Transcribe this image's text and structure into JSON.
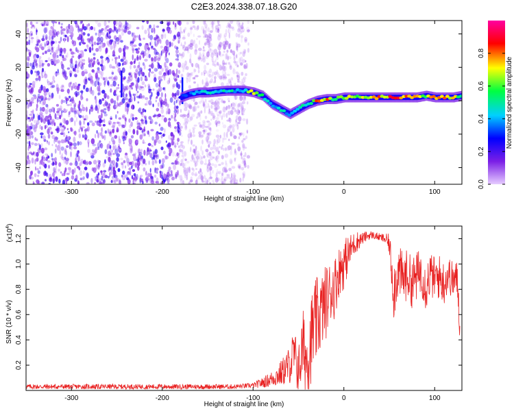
{
  "page": {
    "title": "C2E3.2024.338.07.18.G20"
  },
  "chart_data": [
    {
      "type": "heatmap",
      "title": "C2E3.2024.338.07.18.G20",
      "xlabel": "Height of straight line (km)",
      "ylabel": "Frequency (Hz)",
      "xlim": [
        -350,
        130
      ],
      "ylim": [
        -50,
        48
      ],
      "xticks": [
        -300,
        -200,
        -100,
        0,
        100
      ],
      "yticks": [
        -40,
        -20,
        0,
        20,
        40
      ],
      "colorbar": {
        "label": "Normalized spectral amplitude",
        "range": [
          0,
          1
        ],
        "ticks": [
          0.0,
          0.2,
          0.4,
          0.6,
          0.8
        ],
        "tick_labels": [
          "0.0",
          "0.2",
          "0.4",
          "0.6",
          "0.8"
        ],
        "colors": [
          "#e6ccff",
          "#7b1fe6",
          "#0000ff",
          "#00d0ff",
          "#00ff40",
          "#ffff00",
          "#ff0000",
          "#ff00a0"
        ]
      },
      "signal_track": {
        "x": [
          -180,
          -170,
          -160,
          -150,
          -140,
          -130,
          -120,
          -110,
          -100,
          -90,
          -80,
          -70,
          -60,
          -50,
          -40,
          -30,
          -20,
          -10,
          0,
          10,
          20,
          40,
          60,
          80,
          90,
          100,
          110,
          120,
          130
        ],
        "y": [
          2,
          4,
          5,
          5,
          5.5,
          6,
          6,
          6,
          5,
          3,
          -2,
          -5,
          -8,
          -5,
          -2,
          0,
          1,
          1,
          2,
          2,
          2,
          2,
          2,
          2,
          3,
          2,
          2,
          2,
          3
        ],
        "amplitude": [
          0.3,
          0.35,
          0.45,
          0.5,
          0.5,
          0.5,
          0.5,
          0.5,
          0.9,
          0.6,
          0.5,
          0.5,
          0.45,
          0.5,
          0.55,
          0.8,
          0.85,
          0.6,
          0.75,
          0.7,
          0.75,
          0.85,
          0.95,
          0.95,
          0.7,
          0.8,
          0.9,
          0.8,
          0.6
        ]
      },
      "noise_region": {
        "x_range": [
          -350,
          -105
        ],
        "level": 0.15
      }
    },
    {
      "type": "line",
      "xlabel": "Height of straight line (km)",
      "ylabel": "SNR (10 * v/v)",
      "y_exponent_label": "(x10",
      "y_exponent_value": "4",
      "y_exponent_close": ")",
      "xlim": [
        -350,
        130
      ],
      "ylim": [
        0,
        1.3
      ],
      "xticks": [
        -300,
        -200,
        -100,
        0,
        100
      ],
      "yticks": [
        0.2,
        0.4,
        0.6,
        0.8,
        1.0,
        1.2
      ],
      "ytick_labels": [
        "0.2",
        "0.4",
        "0.6",
        "0.8",
        "1.0",
        "1.2"
      ],
      "color": "#e82020",
      "series": [
        {
          "x": [
            -350,
            -300,
            -250,
            -200,
            -150,
            -120,
            -100,
            -90,
            -80,
            -70,
            -60,
            -55,
            -50,
            -45,
            -40,
            -35,
            -30,
            -25,
            -20,
            -15,
            -10,
            -5,
            0,
            5,
            10,
            15,
            20,
            25,
            30,
            35,
            40,
            45,
            50,
            55,
            60,
            65,
            70,
            75,
            80,
            85,
            90,
            95,
            100,
            105,
            110,
            115,
            120,
            125,
            128
          ],
          "values": [
            0.03,
            0.03,
            0.03,
            0.03,
            0.03,
            0.03,
            0.04,
            0.06,
            0.09,
            0.13,
            0.2,
            0.28,
            0.15,
            0.35,
            0.22,
            0.45,
            0.55,
            0.62,
            0.7,
            0.78,
            0.82,
            0.95,
            1.0,
            1.08,
            1.15,
            1.18,
            1.2,
            1.22,
            1.23,
            1.22,
            1.21,
            1.2,
            1.16,
            0.8,
            0.95,
            0.88,
            0.92,
            0.85,
            0.9,
            0.95,
            0.82,
            0.92,
            0.88,
            0.9,
            0.85,
            0.92,
            0.87,
            0.88,
            0.45
          ],
          "noise_amplitude": [
            0.02,
            0.02,
            0.02,
            0.02,
            0.02,
            0.02,
            0.02,
            0.04,
            0.06,
            0.1,
            0.15,
            0.22,
            0.2,
            0.3,
            0.3,
            0.35,
            0.35,
            0.3,
            0.3,
            0.25,
            0.25,
            0.2,
            0.2,
            0.15,
            0.1,
            0.08,
            0.05,
            0.04,
            0.03,
            0.03,
            0.03,
            0.04,
            0.08,
            0.25,
            0.2,
            0.22,
            0.2,
            0.2,
            0.2,
            0.18,
            0.2,
            0.18,
            0.18,
            0.18,
            0.18,
            0.15,
            0.15,
            0.15,
            0.1
          ]
        }
      ]
    }
  ]
}
